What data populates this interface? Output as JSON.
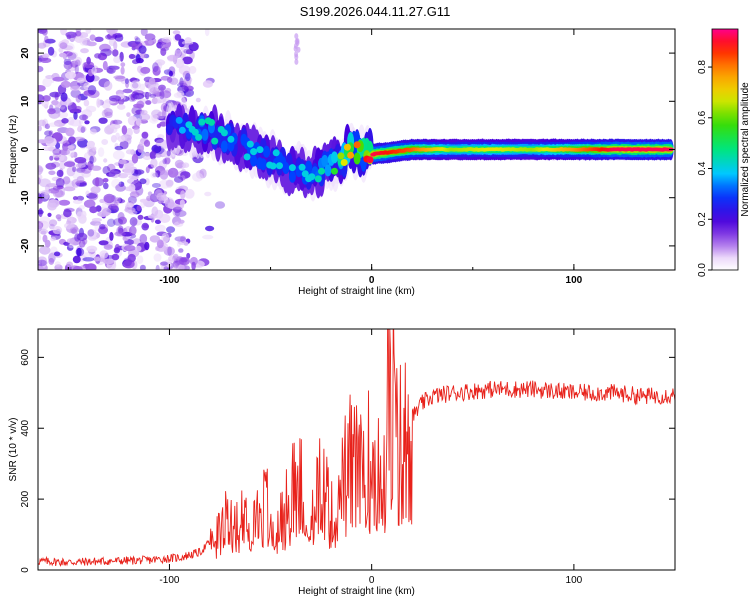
{
  "title": "S199.2026.044.11.27.G11",
  "chart_data": [
    {
      "type": "heatmap",
      "name": "spectrogram",
      "xlabel": "Height of straight line (km)",
      "ylabel": "Frequency (Hz)",
      "xlim": [
        -165,
        150
      ],
      "ylim": [
        -25,
        25
      ],
      "xticks": [
        -100,
        0,
        100
      ],
      "xtick_labels": [
        "-100",
        "0",
        "100"
      ],
      "yticks": [
        -20,
        -10,
        0,
        10,
        20
      ],
      "ytick_labels": [
        "-20",
        "-10",
        "0",
        "10",
        "20"
      ],
      "colorbar": {
        "label": "Normalized spectral amplitude",
        "range": [
          0.0,
          0.95
        ],
        "ticks": [
          0.0,
          0.2,
          0.4,
          0.6,
          0.8
        ],
        "tick_labels": [
          "0.0",
          "0.2",
          "0.4",
          "0.6",
          "0.8"
        ]
      },
      "ridge": {
        "x": [
          -100,
          -90,
          -80,
          -70,
          -60,
          -50,
          -40,
          -30,
          -20,
          -10,
          0,
          10,
          20,
          40,
          60,
          80,
          100,
          120,
          148
        ],
        "freq": [
          5,
          4.5,
          4,
          2,
          0,
          -2,
          -4,
          -5,
          -3,
          0,
          -1,
          -0.5,
          0,
          0,
          0,
          0,
          0,
          0,
          0
        ],
        "amplitude": [
          0.2,
          0.3,
          0.35,
          0.3,
          0.3,
          0.3,
          0.3,
          0.3,
          0.4,
          0.7,
          0.85,
          0.8,
          0.75,
          0.55,
          0.6,
          0.55,
          0.7,
          0.85,
          0.85
        ]
      }
    },
    {
      "type": "line",
      "name": "snr",
      "xlabel": "Height of straight line (km)",
      "ylabel": "SNR (10 * v/v)",
      "xlim": [
        -165,
        150
      ],
      "ylim": [
        0,
        680
      ],
      "xticks": [
        -100,
        0,
        100
      ],
      "xtick_labels": [
        "-100",
        "0",
        "100"
      ],
      "yticks": [
        0,
        200,
        400,
        600
      ],
      "ytick_labels": [
        "0",
        "200",
        "400",
        "600"
      ],
      "color": "#e8221b",
      "series": [
        {
          "name": "SNR",
          "x": [
            -165,
            -150,
            -130,
            -110,
            -95,
            -85,
            -78,
            -72,
            -65,
            -58,
            -52,
            -46,
            -40,
            -35,
            -30,
            -26,
            -22,
            -18,
            -14,
            -10,
            -6,
            -2,
            0,
            4,
            8,
            10,
            12,
            16,
            20,
            25,
            30,
            40,
            60,
            80,
            100,
            120,
            135,
            150
          ],
          "y": [
            25,
            22,
            25,
            28,
            35,
            50,
            90,
            150,
            160,
            170,
            200,
            130,
            230,
            300,
            180,
            250,
            220,
            120,
            270,
            350,
            280,
            330,
            340,
            360,
            330,
            600,
            380,
            400,
            430,
            470,
            490,
            500,
            510,
            510,
            500,
            500,
            490,
            495
          ]
        }
      ]
    }
  ]
}
